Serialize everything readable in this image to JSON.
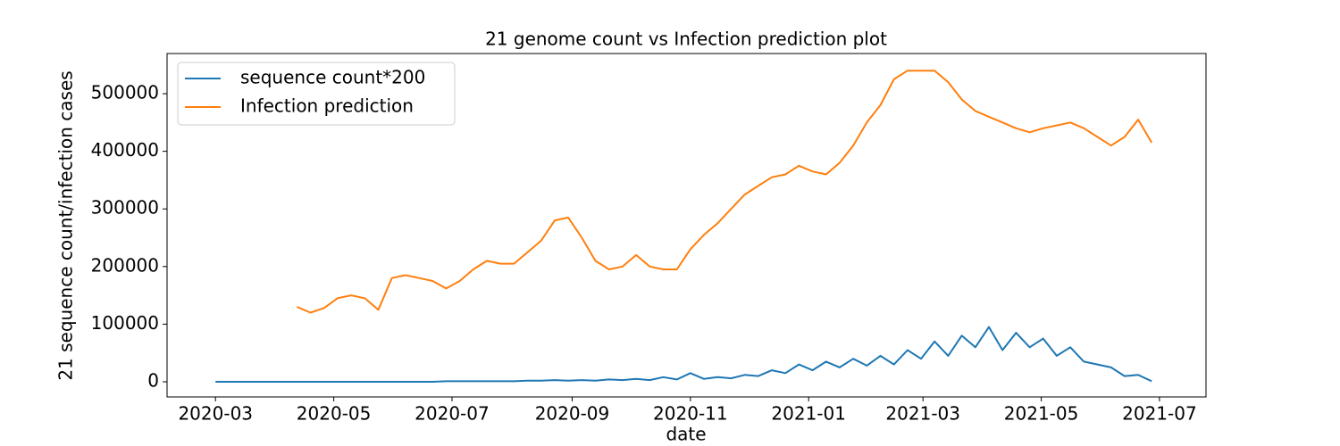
{
  "chart_data": {
    "type": "line",
    "title": "21 genome count vs Infection prediction plot",
    "x_label": "date",
    "y_label": "21 sequence count/infection cases",
    "legend": "upper left",
    "grid": false,
    "xlim": [
      "2020-02-05",
      "2021-07-25"
    ],
    "xticks": [
      "2020-03",
      "2020-05",
      "2020-07",
      "2020-09",
      "2020-11",
      "2021-01",
      "2021-03",
      "2021-05",
      "2021-07"
    ],
    "ylim": [
      -26300,
      569700
    ],
    "yticks": [
      0,
      100000,
      200000,
      300000,
      400000,
      500000
    ],
    "x": [
      "2020-03-01",
      "2020-03-08",
      "2020-03-15",
      "2020-03-22",
      "2020-03-29",
      "2020-04-05",
      "2020-04-12",
      "2020-04-19",
      "2020-04-26",
      "2020-05-03",
      "2020-05-10",
      "2020-05-17",
      "2020-05-24",
      "2020-05-31",
      "2020-06-07",
      "2020-06-14",
      "2020-06-21",
      "2020-06-28",
      "2020-07-05",
      "2020-07-12",
      "2020-07-19",
      "2020-07-26",
      "2020-08-02",
      "2020-08-09",
      "2020-08-16",
      "2020-08-23",
      "2020-08-30",
      "2020-09-06",
      "2020-09-13",
      "2020-09-20",
      "2020-09-27",
      "2020-10-04",
      "2020-10-11",
      "2020-10-18",
      "2020-10-25",
      "2020-11-01",
      "2020-11-08",
      "2020-11-15",
      "2020-11-22",
      "2020-11-29",
      "2020-12-06",
      "2020-12-13",
      "2020-12-20",
      "2020-12-27",
      "2021-01-03",
      "2021-01-10",
      "2021-01-17",
      "2021-01-24",
      "2021-01-31",
      "2021-02-07",
      "2021-02-14",
      "2021-02-21",
      "2021-02-28",
      "2021-03-07",
      "2021-03-14",
      "2021-03-21",
      "2021-03-28",
      "2021-04-04",
      "2021-04-11",
      "2021-04-18",
      "2021-04-25",
      "2021-05-02",
      "2021-05-09",
      "2021-05-16",
      "2021-05-23",
      "2021-05-30",
      "2021-06-06",
      "2021-06-13",
      "2021-06-20",
      "2021-06-27"
    ],
    "series": [
      {
        "name": "sequence count*200",
        "color": "#1f77b4",
        "values": [
          0,
          0,
          0,
          0,
          0,
          0,
          0,
          0,
          0,
          0,
          0,
          0,
          0,
          0,
          0,
          0,
          0,
          1000,
          1000,
          1000,
          1000,
          1000,
          1000,
          2000,
          2000,
          3000,
          2000,
          3000,
          2000,
          4000,
          3000,
          5000,
          3000,
          8000,
          4000,
          15000,
          5000,
          8000,
          6000,
          12000,
          10000,
          20000,
          15000,
          30000,
          20000,
          35000,
          25000,
          40000,
          28000,
          45000,
          30000,
          55000,
          40000,
          70000,
          45000,
          80000,
          60000,
          95000,
          55000,
          85000,
          60000,
          75000,
          45000,
          60000,
          35000,
          30000,
          25000,
          10000,
          12000,
          1000
        ]
      },
      {
        "name": "Infection prediction",
        "color": "#ff7f0e",
        "values": [
          null,
          null,
          null,
          null,
          null,
          null,
          130000,
          120000,
          128000,
          145000,
          150000,
          145000,
          125000,
          180000,
          185000,
          180000,
          175000,
          162000,
          175000,
          195000,
          210000,
          205000,
          205000,
          225000,
          245000,
          280000,
          285000,
          250000,
          210000,
          195000,
          200000,
          220000,
          200000,
          195000,
          195000,
          230000,
          255000,
          275000,
          300000,
          325000,
          340000,
          355000,
          360000,
          375000,
          365000,
          360000,
          380000,
          410000,
          450000,
          480000,
          525000,
          540000,
          540000,
          540000,
          520000,
          490000,
          470000,
          460000,
          450000,
          440000,
          433000,
          440000,
          445000,
          450000,
          440000,
          425000,
          410000,
          425000,
          455000,
          415000
        ]
      }
    ]
  }
}
